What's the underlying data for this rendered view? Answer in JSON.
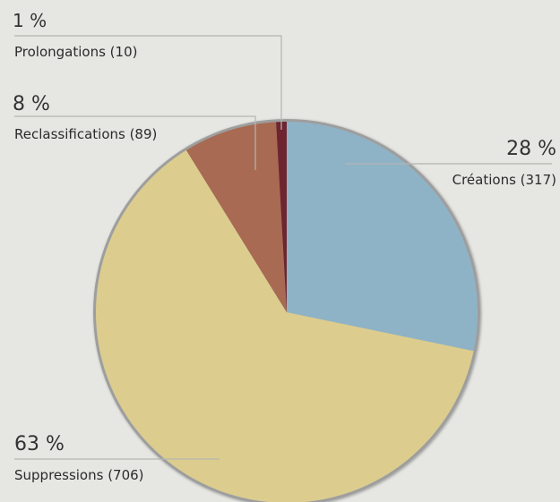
{
  "chart_data": {
    "type": "pie",
    "slices": [
      {
        "name": "Créations",
        "count": 317,
        "percent": 28,
        "percent_label": "28 %",
        "label": "Créations (317)",
        "color": "#8fb3c6"
      },
      {
        "name": "Suppressions",
        "count": 706,
        "percent": 63,
        "percent_label": "63 %",
        "label": "Suppressions (706)",
        "color": "#dccd8f"
      },
      {
        "name": "Reclassifications",
        "count": 89,
        "percent": 8,
        "percent_label": "8 %",
        "label": "Reclassifications (89)",
        "color": "#a86a52"
      },
      {
        "name": "Prolongations",
        "count": 10,
        "percent": 1,
        "percent_label": "1 %",
        "label": "Prolongations (10)",
        "color": "#6e2530"
      }
    ]
  }
}
